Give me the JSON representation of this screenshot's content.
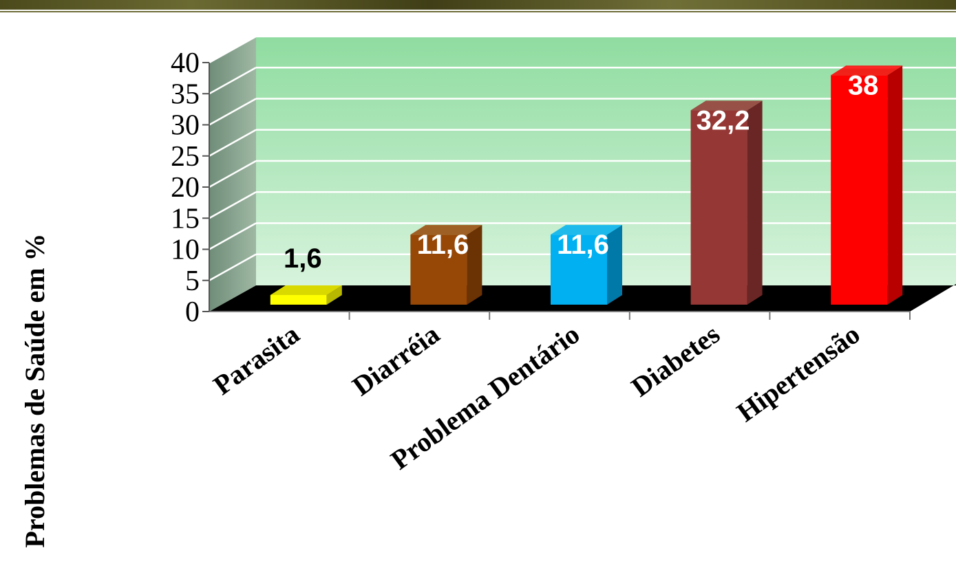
{
  "chart_data": {
    "type": "bar",
    "title": "",
    "xlabel": "",
    "ylabel": "Problemas de Saúde em %",
    "categories": [
      "Parasita",
      "Diarréia",
      "Problema Dentário",
      "Diabetes",
      "Hipertensão"
    ],
    "values": [
      1.6,
      11.6,
      11.6,
      32.2,
      38
    ],
    "value_labels": [
      "1,6",
      "11,6",
      "11,6",
      "32,2",
      "38"
    ],
    "bar_colors": [
      "#ffff00",
      "#974706",
      "#00b0f0",
      "#953735",
      "#ff0000"
    ],
    "bar_side_colors": [
      "#b8b800",
      "#6b3203",
      "#0078a8",
      "#6a2624",
      "#b80000"
    ],
    "label_colors": [
      "#000000",
      "#ffffff",
      "#ffffff",
      "#ffffff",
      "#ffffff"
    ],
    "ylim": [
      0,
      40
    ],
    "yticks": [
      0,
      5,
      10,
      15,
      20,
      25,
      30,
      35,
      40
    ],
    "grid": true,
    "style": "3d",
    "wall_color": "#a8e4b8",
    "floor_color": "#000000"
  }
}
